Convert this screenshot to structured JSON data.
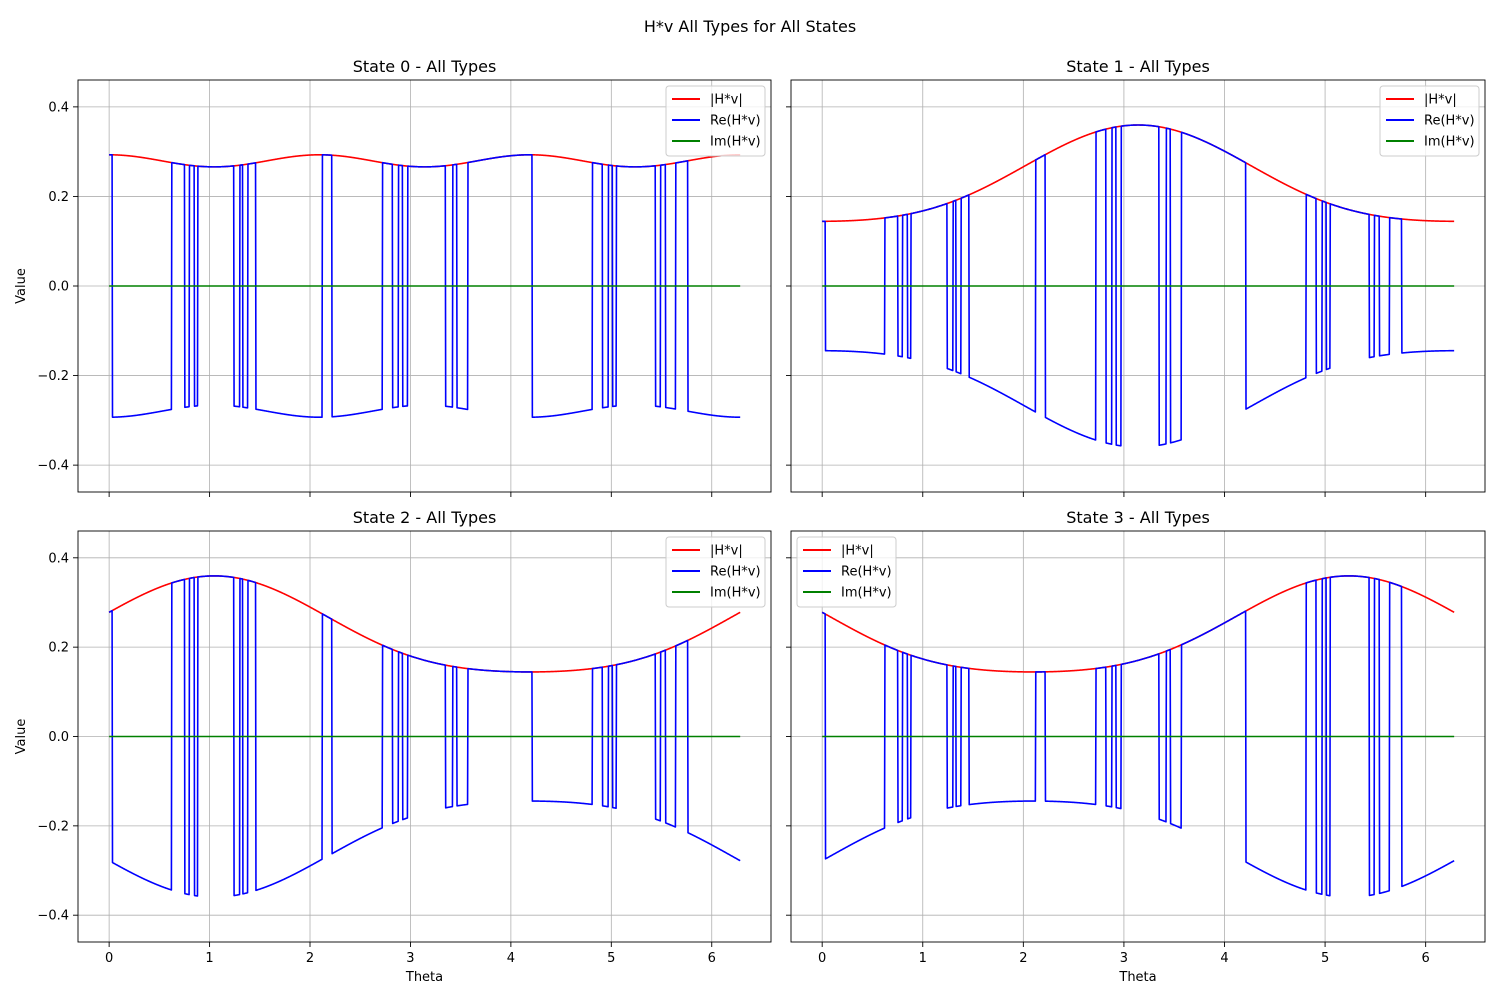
{
  "figure": {
    "suptitle": "H*v All Types for All States"
  },
  "colors": {
    "abs": "#ff0000",
    "re": "#0000ff",
    "im": "#008000",
    "grid": "#b0b0b0"
  },
  "chart_data": [
    {
      "type": "line",
      "title": "State 0 - All Types",
      "xlabel": "",
      "ylabel": "Value",
      "xlim": [
        -0.31,
        6.59
      ],
      "ylim": [
        -0.46,
        0.46
      ],
      "xticks": [
        0,
        1,
        2,
        3,
        4,
        5,
        6
      ],
      "yticks": [
        -0.4,
        -0.2,
        0.0,
        0.2,
        0.4
      ],
      "ytick_labels": [
        "−0.4",
        "−0.2",
        "0.0",
        "0.2",
        "0.4"
      ],
      "show_xticklabels": false,
      "show_yticklabels": true,
      "grid": true,
      "legend_position": "upper right",
      "abs_curve": {
        "a0": 0.2795,
        "amp": 0.0135,
        "freq": 3,
        "phase": 0
      },
      "flip_points": [
        0.03,
        0.62,
        0.75,
        0.8,
        0.85,
        0.88,
        1.24,
        1.3,
        1.33,
        1.38,
        1.46,
        2.12,
        2.22,
        2.72,
        2.82,
        2.88,
        2.92,
        2.97,
        3.35,
        3.42,
        3.46,
        3.57,
        4.21,
        4.81,
        4.91,
        4.97,
        5.01,
        5.05,
        5.44,
        5.49,
        5.54,
        5.64,
        5.76
      ],
      "series": [
        {
          "name": "|H*v|",
          "color": "#ff0000"
        },
        {
          "name": "Re(H*v)",
          "color": "#0000ff"
        },
        {
          "name": "Im(H*v)",
          "color": "#008000"
        }
      ]
    },
    {
      "type": "line",
      "title": "State 1 - All Types",
      "xlabel": "",
      "ylabel": "",
      "xlim": [
        -0.31,
        6.59
      ],
      "ylim": [
        -0.46,
        0.46
      ],
      "xticks": [
        0,
        1,
        2,
        3,
        4,
        5,
        6
      ],
      "yticks": [
        -0.4,
        -0.2,
        0.0,
        0.2,
        0.4
      ],
      "ytick_labels": [
        "−0.4",
        "−0.2",
        "0.0",
        "0.2",
        "0.4"
      ],
      "show_xticklabels": false,
      "show_yticklabels": false,
      "grid": true,
      "legend_position": "upper right",
      "abs_curve": {
        "a0": 0.2335,
        "amp": 0.1075,
        "freq": 1,
        "phase": 3.14159,
        "a2": 0.0185,
        "freq2": 2,
        "phase2": 0
      },
      "flip_points": [
        0.03,
        0.62,
        0.75,
        0.8,
        0.85,
        0.88,
        1.24,
        1.3,
        1.33,
        1.38,
        1.46,
        2.12,
        2.22,
        2.72,
        2.82,
        2.88,
        2.92,
        2.97,
        3.35,
        3.42,
        3.46,
        3.57,
        4.21,
        4.81,
        4.91,
        4.97,
        5.01,
        5.05,
        5.44,
        5.49,
        5.54,
        5.64,
        5.76
      ],
      "series": [
        {
          "name": "|H*v|",
          "color": "#ff0000"
        },
        {
          "name": "Re(H*v)",
          "color": "#0000ff"
        },
        {
          "name": "Im(H*v)",
          "color": "#008000"
        }
      ]
    },
    {
      "type": "line",
      "title": "State 2 - All Types",
      "xlabel": "Theta",
      "ylabel": "Value",
      "xlim": [
        -0.31,
        6.59
      ],
      "ylim": [
        -0.46,
        0.46
      ],
      "xticks": [
        0,
        1,
        2,
        3,
        4,
        5,
        6
      ],
      "yticks": [
        -0.4,
        -0.2,
        0.0,
        0.2,
        0.4
      ],
      "ytick_labels": [
        "−0.4",
        "−0.2",
        "0.0",
        "0.2",
        "0.4"
      ],
      "show_xticklabels": true,
      "show_yticklabels": true,
      "grid": true,
      "legend_position": "upper right",
      "abs_curve": {
        "a0": 0.2335,
        "amp": 0.1075,
        "freq": 1,
        "phase": 1.0472,
        "a2": 0.0185,
        "freq2": 2,
        "phase2": 2.0944
      },
      "flip_points": [
        0.03,
        0.62,
        0.75,
        0.8,
        0.85,
        0.88,
        1.24,
        1.3,
        1.33,
        1.38,
        1.46,
        2.12,
        2.22,
        2.72,
        2.82,
        2.88,
        2.92,
        2.97,
        3.35,
        3.42,
        3.46,
        3.57,
        4.21,
        4.81,
        4.91,
        4.97,
        5.01,
        5.05,
        5.44,
        5.49,
        5.54,
        5.64,
        5.76
      ],
      "series": [
        {
          "name": "|H*v|",
          "color": "#ff0000"
        },
        {
          "name": "Re(H*v)",
          "color": "#0000ff"
        },
        {
          "name": "Im(H*v)",
          "color": "#008000"
        }
      ]
    },
    {
      "type": "line",
      "title": "State 3 - All Types",
      "xlabel": "Theta",
      "ylabel": "",
      "xlim": [
        -0.31,
        6.59
      ],
      "ylim": [
        -0.46,
        0.46
      ],
      "xticks": [
        0,
        1,
        2,
        3,
        4,
        5,
        6
      ],
      "yticks": [
        -0.4,
        -0.2,
        0.0,
        0.2,
        0.4
      ],
      "ytick_labels": [
        "−0.4",
        "−0.2",
        "0.0",
        "0.2",
        "0.4"
      ],
      "show_xticklabels": true,
      "show_yticklabels": false,
      "grid": true,
      "legend_position": "upper left",
      "abs_curve": {
        "a0": 0.2335,
        "amp": 0.1075,
        "freq": 1,
        "phase": 5.236,
        "a2": 0.0185,
        "freq2": 2,
        "phase2": 4.1888
      },
      "flip_points": [
        0.03,
        0.62,
        0.75,
        0.8,
        0.85,
        0.88,
        1.24,
        1.3,
        1.33,
        1.38,
        1.46,
        2.12,
        2.22,
        2.72,
        2.82,
        2.88,
        2.92,
        2.97,
        3.35,
        3.42,
        3.46,
        3.57,
        4.21,
        4.81,
        4.91,
        4.97,
        5.01,
        5.05,
        5.44,
        5.49,
        5.54,
        5.64,
        5.76
      ],
      "series": [
        {
          "name": "|H*v|",
          "color": "#ff0000"
        },
        {
          "name": "Re(H*v)",
          "color": "#0000ff"
        },
        {
          "name": "Im(H*v)",
          "color": "#008000"
        }
      ]
    }
  ]
}
